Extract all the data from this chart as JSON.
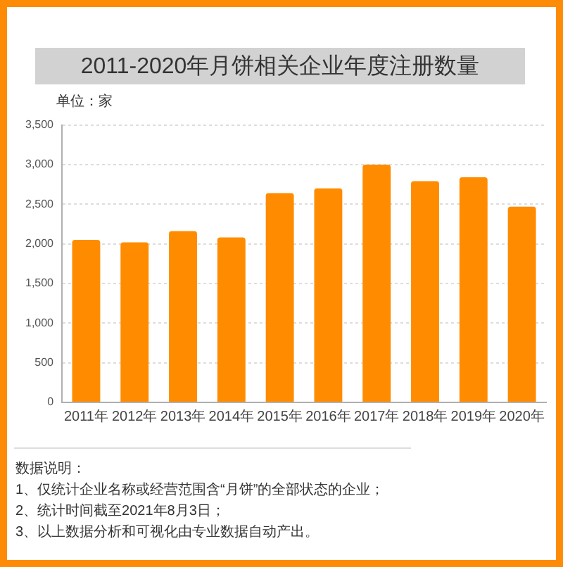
{
  "chart_data": {
    "type": "bar",
    "title": "2011-2020年月饼相关企业年度注册数量",
    "ylabel": "单位：家",
    "categories": [
      "2011年",
      "2012年",
      "2013年",
      "2014年",
      "2015年",
      "2016年",
      "2017年",
      "2018年",
      "2019年",
      "2020年"
    ],
    "values": [
      2050,
      2020,
      2160,
      2080,
      2640,
      2700,
      3000,
      2790,
      2840,
      2470
    ],
    "color": "#ff8c00",
    "ylim": [
      0,
      3500
    ],
    "yticks": [
      0,
      500,
      {
        "value": 1000,
        "label": "1,000"
      },
      {
        "value": 1500,
        "label": "1,500"
      },
      {
        "value": 2000,
        "label": "2,000"
      },
      {
        "value": 2500,
        "label": "2,500"
      },
      {
        "value": 3000,
        "label": "3,000"
      },
      {
        "value": 3500,
        "label": "3,500"
      }
    ],
    "grid": "y",
    "annotations": [
      "数据说明：",
      "1、仅统计企业名称或经营范围含“月饼”的全部状态的企业；",
      "2、统计时间截至2021年8月3日；",
      "3、以上数据分析和可视化由专业数据自动产出。"
    ]
  }
}
